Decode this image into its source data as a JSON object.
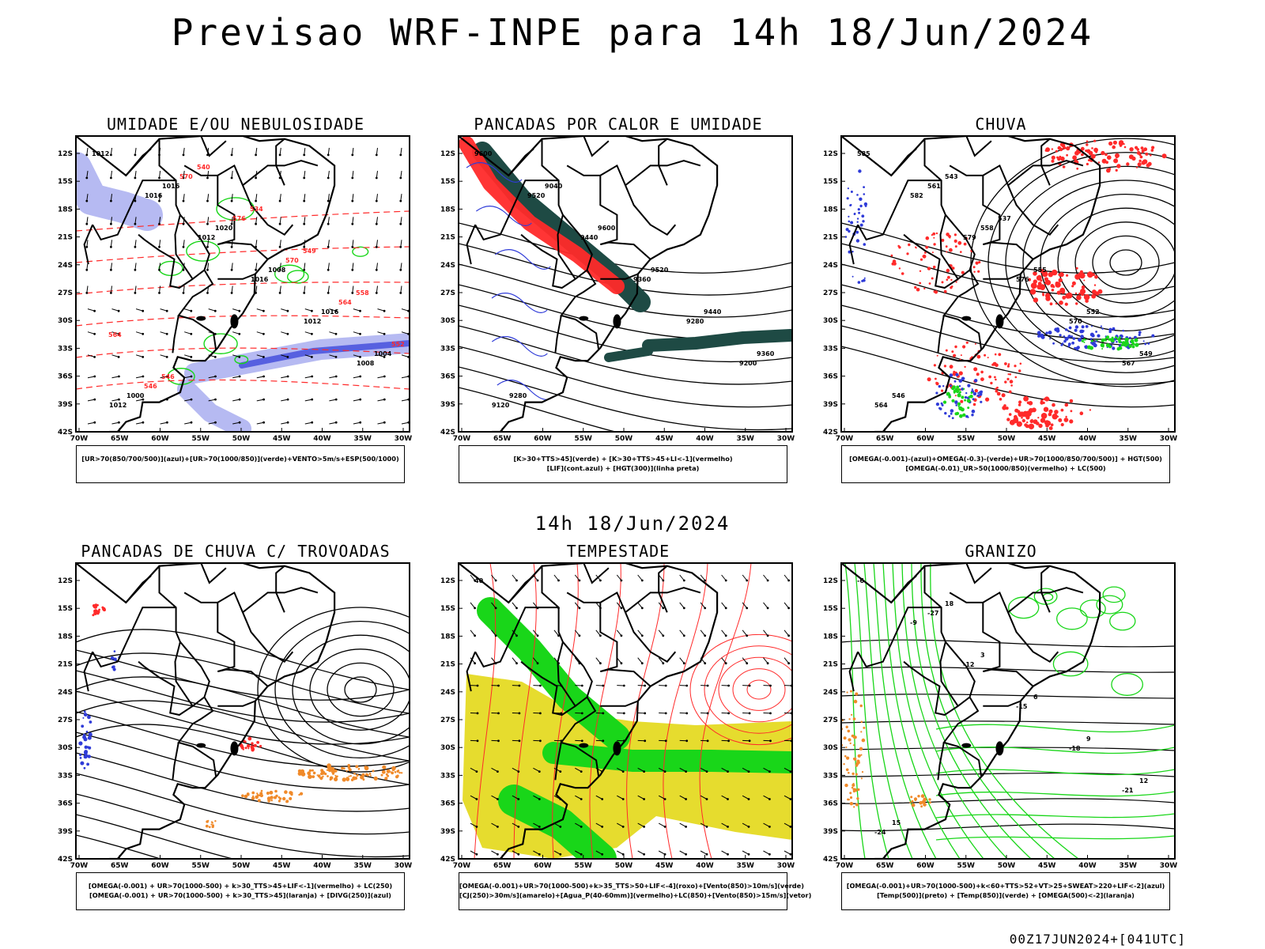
{
  "title": "Previsao WRF-INPE  para 14h 18/Jun/2024",
  "subtitle_time": "14h 18/Jun/2024",
  "footer": "00Z17JUN2024+[041UTC]",
  "axis": {
    "lat": [
      "12S",
      "15S",
      "18S",
      "21S",
      "24S",
      "27S",
      "30S",
      "33S",
      "36S",
      "39S",
      "42S"
    ],
    "lon": [
      "70W",
      "65W",
      "60W",
      "55W",
      "50W",
      "45W",
      "40W",
      "35W",
      "30W"
    ]
  },
  "colors": {
    "blue": "#2f3bd8",
    "green": "#19d619",
    "red": "#ff2a2a",
    "orange": "#f08a2a",
    "yellow": "#e6dc2e",
    "darkgreen": "#1e4a44",
    "lightblue": "#a9aef0"
  },
  "panels": [
    {
      "id": "umidade",
      "title": "UMIDADE E/OU NEBULOSIDADE",
      "legend": [
        "[UR>70(850/700/500)](azul)+[UR>70(1000/850)](verde)+VENTO>5m/s+ESP(500/1000)"
      ],
      "labels": [
        "1012",
        "1016",
        "1012",
        "1016",
        "1012",
        "1008",
        "1012",
        "1016",
        "1020",
        "1008",
        "1016",
        "1004",
        "1000",
        "570",
        "576",
        "570",
        "564",
        "552",
        "546",
        "540",
        "534",
        "549",
        "558",
        "564",
        "546"
      ]
    },
    {
      "id": "pancadas_calor",
      "title": "PANCADAS POR CALOR E UMIDADE",
      "legend": [
        "[K>30+TTS>45](verde) + [K>30+TTS>45+LI<-1](vermelho)",
        "[LIF](cont.azul) + [HGT(300)](linha preta)"
      ],
      "labels": [
        "9600",
        "9520",
        "9440",
        "9360",
        "9280",
        "9200",
        "9120",
        "9040",
        "9600",
        "9520",
        "9440",
        "9360",
        "9280"
      ]
    },
    {
      "id": "chuva",
      "title": "CHUVA",
      "legend": [
        "[OMEGA(-0.001)-(azul)+OMEGA(-0.3)-(verde)+UR>70(1000/850/700/500)] + HGT(500)",
        "[OMEGA(-0.01)_UR>50(1000/850)(vermelho) + LC(500)"
      ],
      "labels": [
        "585",
        "582",
        "579",
        "576",
        "570",
        "567",
        "564",
        "561",
        "558",
        "555",
        "552",
        "549",
        "546",
        "543",
        "537"
      ]
    },
    {
      "id": "trovoadas",
      "title": "PANCADAS DE CHUVA C/ TROVOADAS",
      "legend": [
        "[OMEGA(-0.001) + UR>70(1000-500) + k>30_TTS>45+LIF<-1](vermelho) + LC(250)",
        "[OMEGA(-0.001) + UR>70(1000-500) + k>30_TTS>45](laranja) + [DIVG(250)](azul)"
      ],
      "labels": []
    },
    {
      "id": "tempestade",
      "title": "TEMPESTADE",
      "legend": [
        "[OMEGA(-0.001)+UR>70(1000-500)+k>35_TTS>50+LIF<-4](roxo)+[Vento(850)>10m/s](verde)",
        "[CJ(250)>30m/s](amarelo)+[Agua_P(40-60mm)](vermelho)+LC(850)+[Vento(850)>15m/s](vetor)"
      ],
      "labels": [
        "40"
      ]
    },
    {
      "id": "granizo",
      "title": "GRANIZO",
      "legend": [
        "[OMEGA(-0.001)+UR>70(1000-500)+k<60+TTS>52+VT>25+SWEAT>220+LIF<-2](azul)",
        "[Temp(500)](preto) + [Temp(850)](verde) + [OMEGA(500)<-2](laranja)"
      ],
      "labels": [
        "-6",
        "-9",
        "-12",
        "-15",
        "-18",
        "-21",
        "-24",
        "-27",
        "3",
        "6",
        "9",
        "12",
        "15",
        "18"
      ]
    }
  ]
}
